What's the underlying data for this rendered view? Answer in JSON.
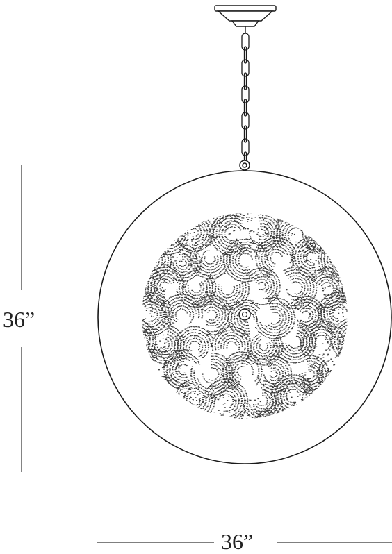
{
  "dimensions": {
    "height_label": "36”",
    "width_label": "36”"
  },
  "colors": {
    "line": "#1a1a1a",
    "texture": "#3a3a3a",
    "background": "#ffffff"
  },
  "parts": [
    "ceiling-canopy",
    "chain",
    "globe",
    "crystal-cluster",
    "center-socket"
  ]
}
